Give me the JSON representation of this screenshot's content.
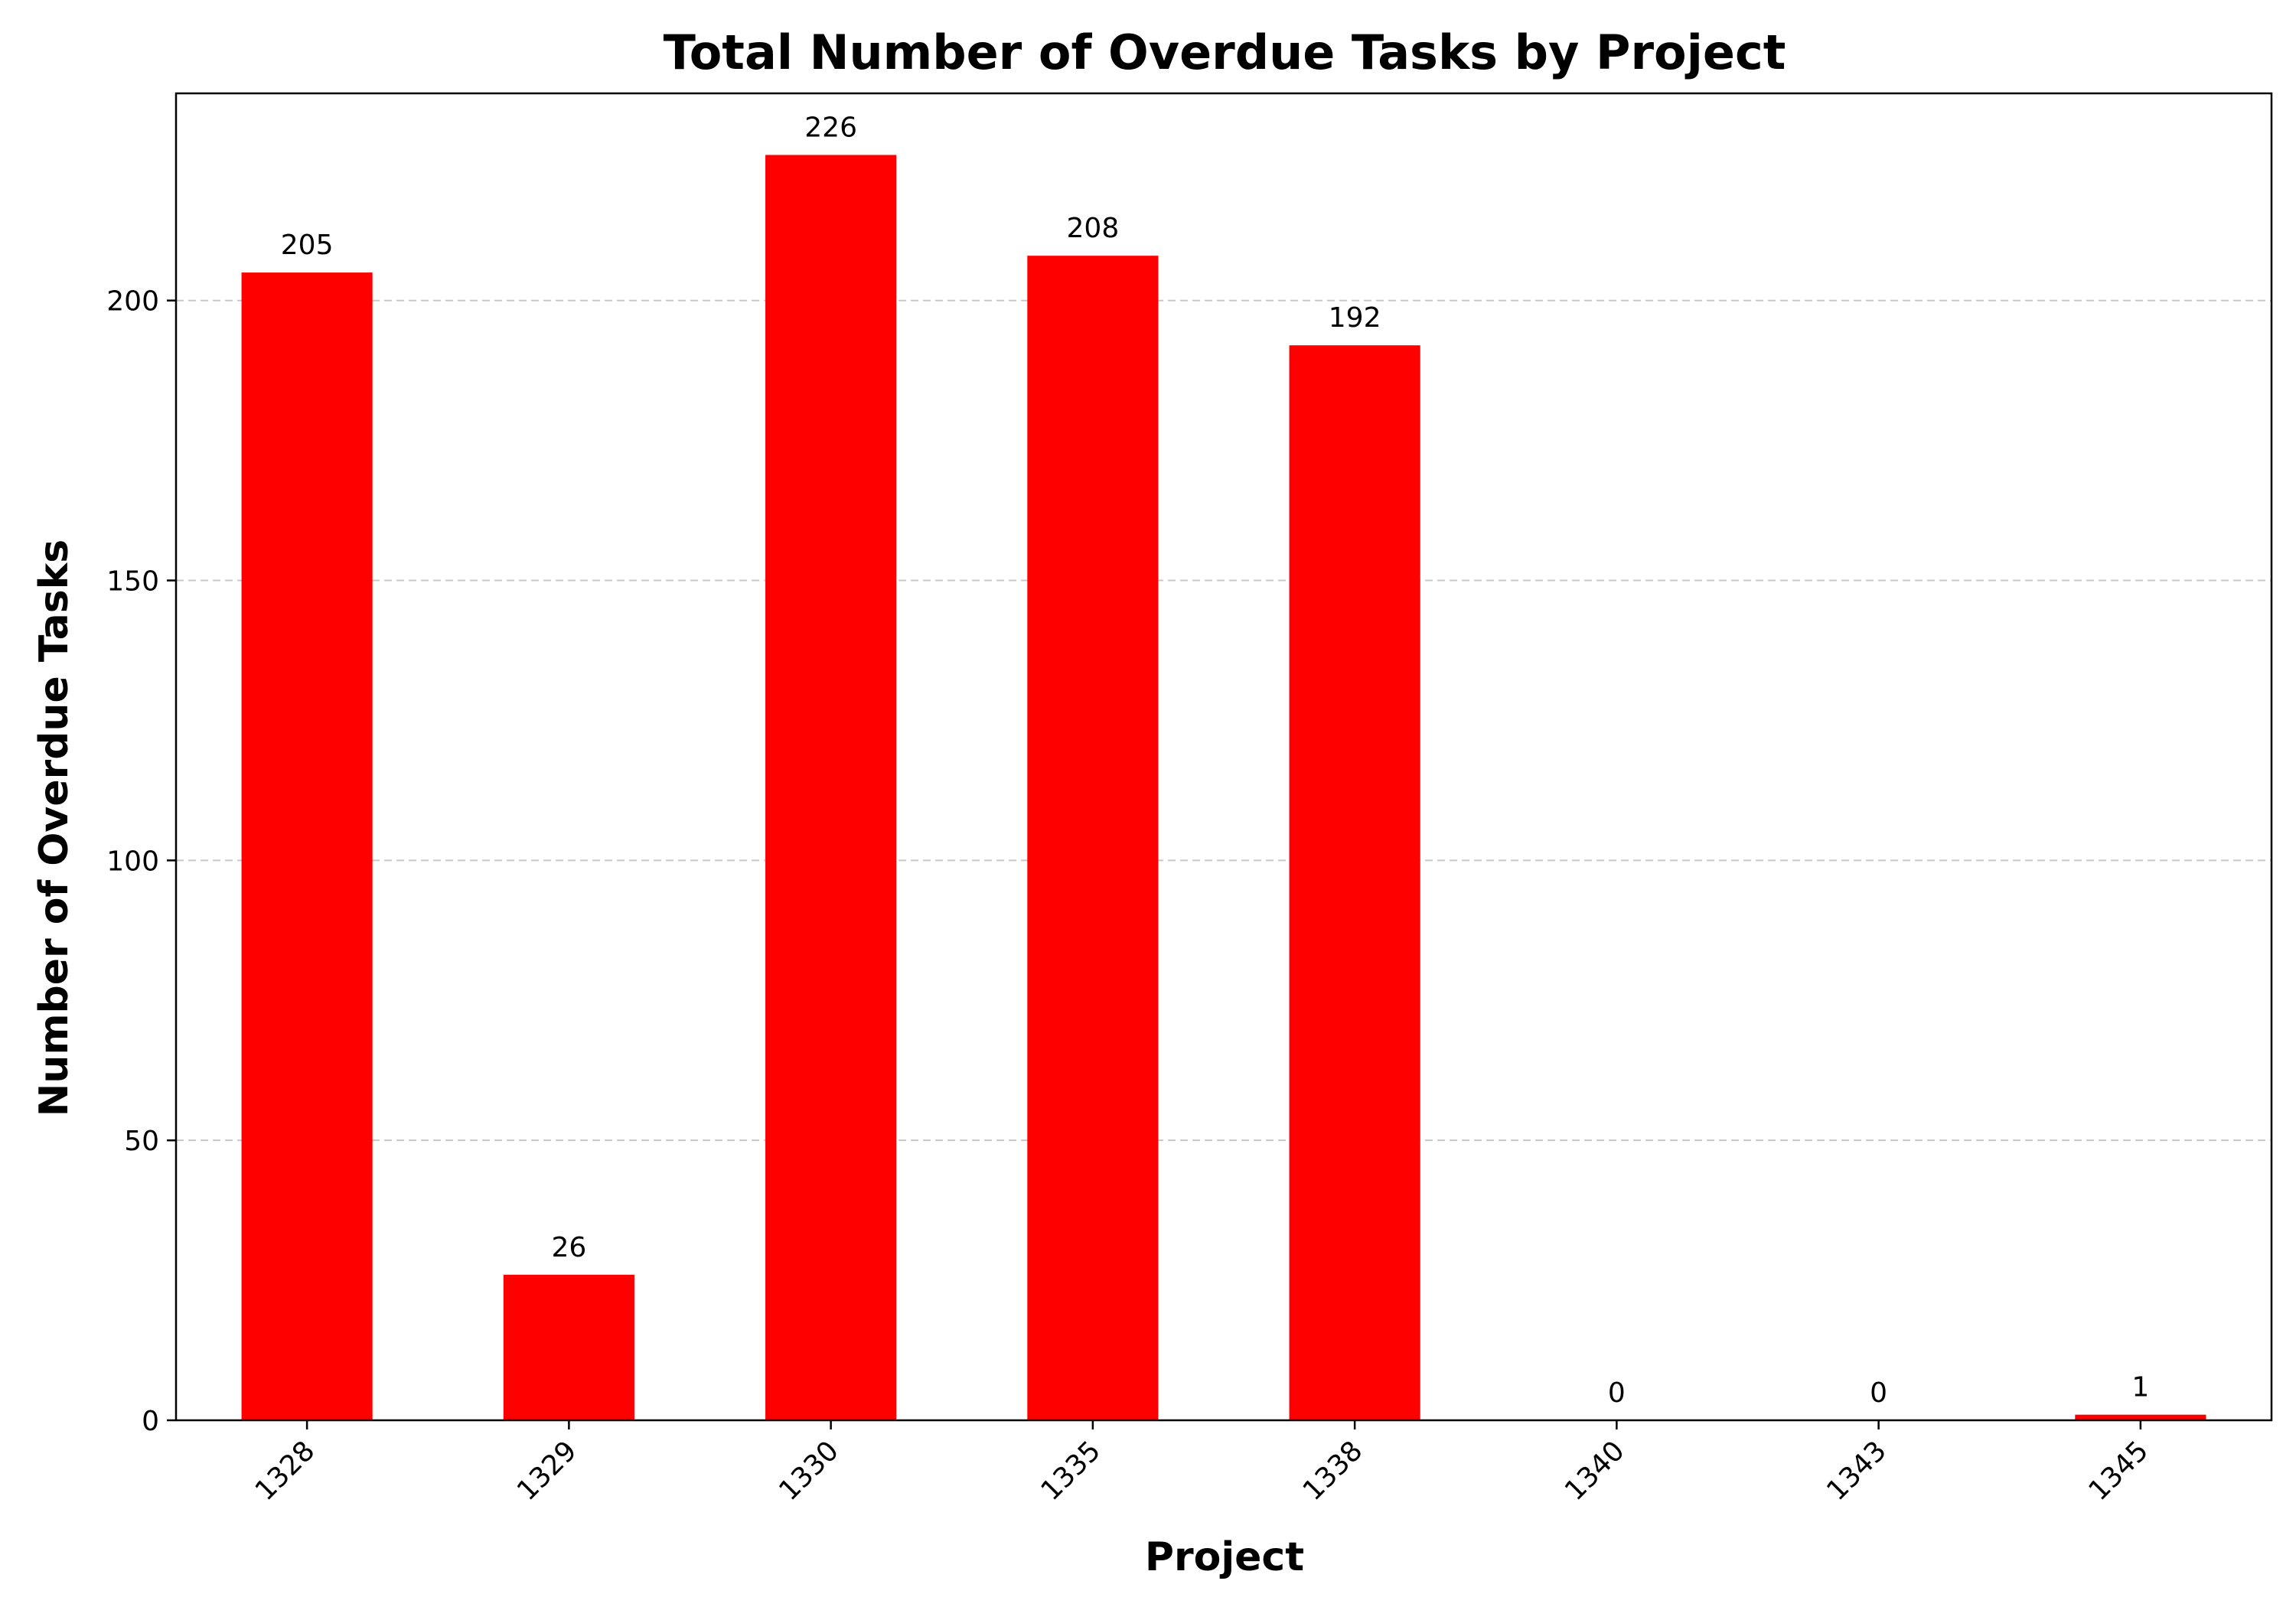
{
  "chart_data": {
    "type": "bar",
    "title": "Total Number of Overdue Tasks by Project",
    "xlabel": "Project",
    "ylabel": "Number of Overdue Tasks",
    "categories": [
      "1328",
      "1329",
      "1330",
      "1335",
      "1338",
      "1340",
      "1343",
      "1345"
    ],
    "values": [
      205,
      26,
      226,
      208,
      192,
      0,
      0,
      1
    ],
    "data_labels": [
      "205",
      "26",
      "226",
      "208",
      "192",
      "0",
      "0",
      "1"
    ],
    "ylim": [
      0,
      237
    ],
    "yticks": [
      0,
      50,
      100,
      150,
      200
    ],
    "ytick_labels": [
      "0",
      "50",
      "100",
      "150",
      "200"
    ],
    "grid": "y-dashed",
    "bar_color": "#ff0000",
    "grid_color": "#c8c8c8",
    "x_tick_rotation": "45 degrees"
  }
}
